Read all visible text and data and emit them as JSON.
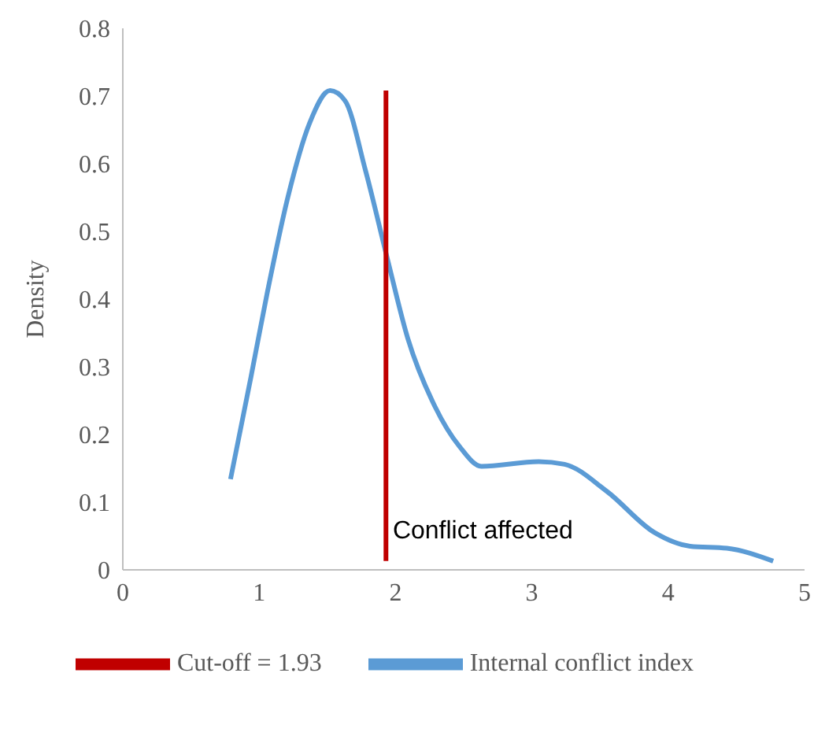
{
  "chart_data": {
    "type": "line",
    "ylabel": "Density",
    "xlim": [
      0,
      5
    ],
    "xticks": [
      0,
      1,
      2,
      3,
      4,
      5
    ],
    "ylim": [
      0,
      0.8
    ],
    "yticks": [
      {
        "value": 0,
        "label": "0"
      },
      0.1,
      0.2,
      0.3,
      0.4,
      0.5,
      0.6,
      0.7,
      0.8
    ],
    "grid": false,
    "legend": "bottom",
    "marker": "none",
    "line_style": "solid",
    "series": [
      {
        "name": "Internal conflict index",
        "color": "#5b9bd5",
        "x": [
          0.79,
          0.94,
          1.06,
          1.21,
          1.37,
          1.52,
          1.63,
          1.78,
          1.94,
          2.09,
          2.29,
          2.47,
          2.63,
          3.05,
          3.24,
          3.55,
          3.9,
          4.16,
          4.43,
          4.77
        ],
        "values": [
          0.134,
          0.285,
          0.41,
          0.55,
          0.66,
          0.708,
          0.693,
          0.59,
          0.46,
          0.342,
          0.241,
          0.182,
          0.153,
          0.16,
          0.156,
          0.116,
          0.055,
          0.035,
          0.032,
          0.013
        ]
      },
      {
        "name": "Cut-off = 1.93",
        "color": "#c00000",
        "x": [
          1.93,
          1.93
        ],
        "values": [
          0.013,
          0.708
        ]
      }
    ],
    "annotations": [
      {
        "text": "Conflict affected",
        "x": 1.98,
        "y": 0.06
      }
    ]
  }
}
